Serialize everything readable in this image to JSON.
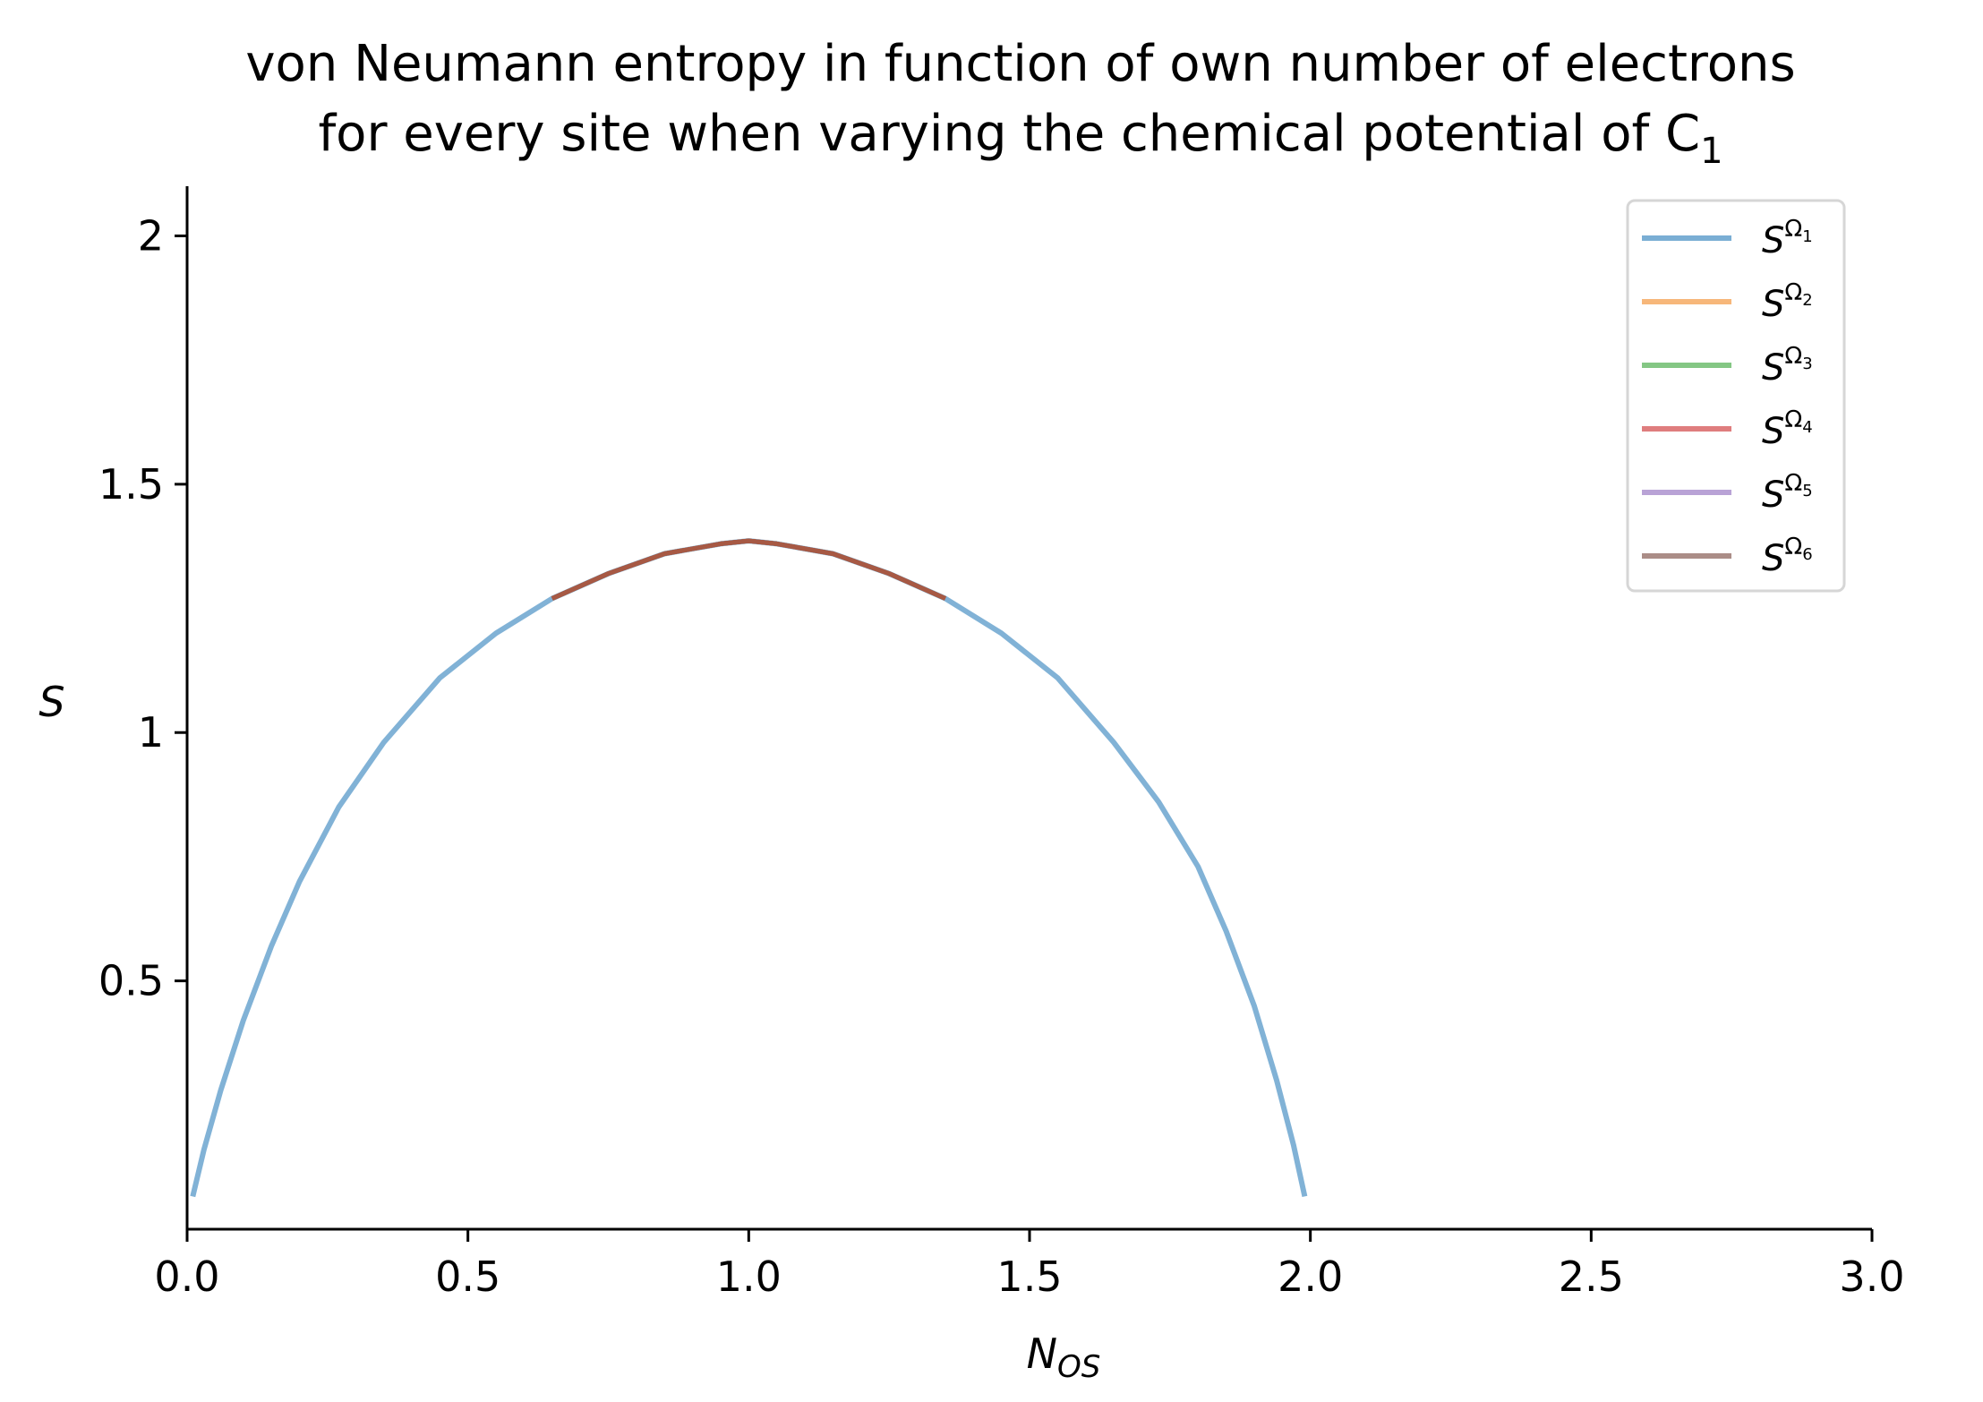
{
  "chart_data": {
    "type": "line",
    "title_line1": "von Neumann entropy in function of own number of electrons",
    "title_line2": "for every site when varying the chemical potential of C",
    "title_subscript": "1",
    "xlabel": "N",
    "xlabel_sub": "OS",
    "ylabel": "S",
    "xlim": [
      0,
      3
    ],
    "ylim": [
      0,
      2.1
    ],
    "xticks": [
      "0.0",
      "0.5",
      "1.0",
      "1.5",
      "2.0",
      "2.5",
      "3.0"
    ],
    "xtick_values": [
      0,
      0.5,
      1.0,
      1.5,
      2.0,
      2.5,
      3.0
    ],
    "yticks": [
      "0.5",
      "1",
      "1.5",
      "2"
    ],
    "ytick_values": [
      0.5,
      1,
      1.5,
      2
    ],
    "grid": false,
    "legend_position": "top-right",
    "series": [
      {
        "name": "SΩ1",
        "label_base": "S",
        "label_sup": "Ω",
        "label_sub": "1",
        "color": "#7aaed4",
        "x": [
          0.01,
          0.03,
          0.06,
          0.1,
          0.15,
          0.2,
          0.27,
          0.35,
          0.45,
          0.55,
          0.65,
          0.75,
          0.85,
          0.95,
          1.0,
          1.05,
          1.15,
          1.25,
          1.35,
          1.45,
          1.55,
          1.65,
          1.73,
          1.8,
          1.85,
          1.9,
          1.94,
          1.97,
          1.99
        ],
        "values": [
          0.066,
          0.16,
          0.28,
          0.42,
          0.57,
          0.7,
          0.85,
          0.98,
          1.11,
          1.2,
          1.27,
          1.32,
          1.36,
          1.38,
          1.386,
          1.38,
          1.36,
          1.32,
          1.27,
          1.2,
          1.11,
          0.98,
          0.86,
          0.73,
          0.6,
          0.45,
          0.3,
          0.17,
          0.066
        ]
      },
      {
        "name": "SΩ2",
        "label_base": "S",
        "label_sup": "Ω",
        "label_sub": "2",
        "color": "#f7b77a",
        "x": [
          0.65,
          0.75,
          0.85,
          0.95,
          1.0,
          1.05,
          1.15,
          1.25,
          1.35
        ],
        "values": [
          1.27,
          1.32,
          1.36,
          1.38,
          1.386,
          1.38,
          1.36,
          1.32,
          1.27
        ]
      },
      {
        "name": "SΩ3",
        "label_base": "S",
        "label_sup": "Ω",
        "label_sub": "3",
        "color": "#84c784",
        "x": [
          0.65,
          0.75,
          0.85,
          0.95,
          1.0,
          1.05,
          1.15,
          1.25,
          1.35
        ],
        "values": [
          1.27,
          1.32,
          1.36,
          1.38,
          1.386,
          1.38,
          1.36,
          1.32,
          1.27
        ]
      },
      {
        "name": "SΩ4",
        "label_base": "S",
        "label_sup": "Ω",
        "label_sub": "4",
        "color": "#df7d7e",
        "x": [
          0.65,
          0.75,
          0.85,
          0.95,
          1.0,
          1.05,
          1.15,
          1.25,
          1.35
        ],
        "values": [
          1.27,
          1.32,
          1.36,
          1.38,
          1.386,
          1.38,
          1.36,
          1.32,
          1.27
        ]
      },
      {
        "name": "SΩ5",
        "label_base": "S",
        "label_sup": "Ω",
        "label_sub": "5",
        "color": "#b9a3d6",
        "x": [
          0.65,
          0.75,
          0.85,
          0.95,
          1.0,
          1.05,
          1.15,
          1.25,
          1.35
        ],
        "values": [
          1.27,
          1.32,
          1.36,
          1.38,
          1.386,
          1.38,
          1.36,
          1.32,
          1.27
        ]
      },
      {
        "name": "SΩ6",
        "label_base": "S",
        "label_sup": "Ω",
        "label_sub": "6",
        "color": "#ab8d87",
        "x": [
          0.65,
          0.75,
          0.85,
          0.95,
          1.0,
          1.05,
          1.15,
          1.25,
          1.35
        ],
        "values": [
          1.27,
          1.32,
          1.36,
          1.38,
          1.386,
          1.38,
          1.36,
          1.32,
          1.27
        ]
      }
    ],
    "overlay_color": "#a65a45"
  }
}
